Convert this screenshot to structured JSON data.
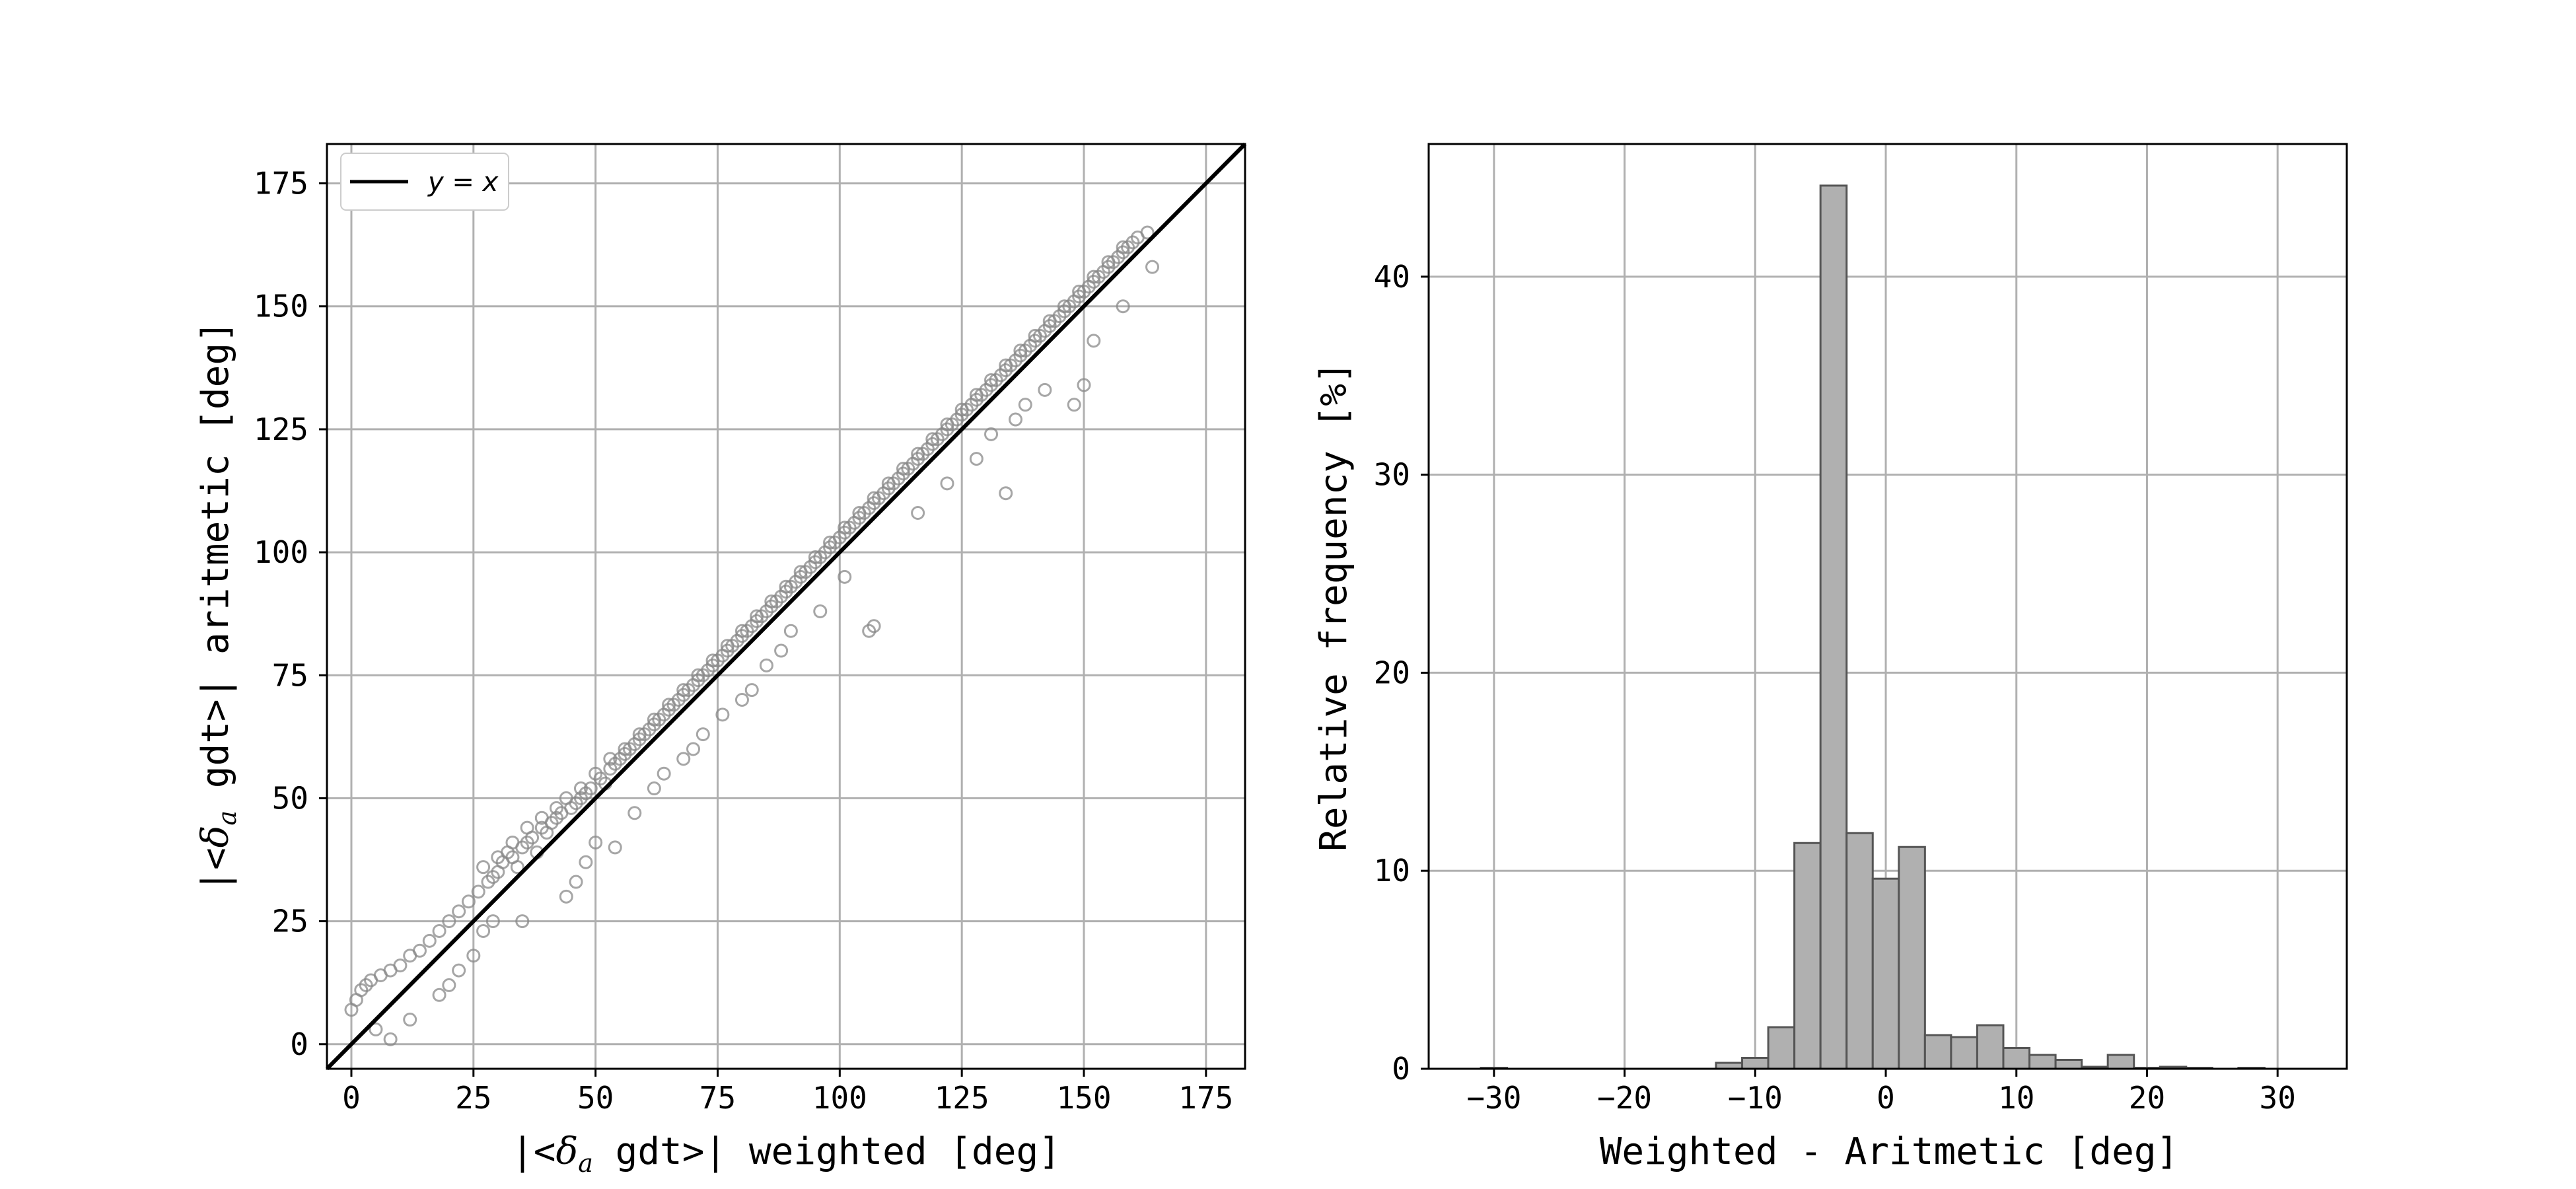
{
  "chart_data": [
    {
      "type": "scatter",
      "xlabel_parts": [
        "|<",
        "δ",
        "a",
        " gdt>| weighted [deg]"
      ],
      "ylabel_parts": [
        "|<",
        "δ",
        "a",
        " gdt>| aritmetic [deg]"
      ],
      "xlim": [
        -5,
        183
      ],
      "ylim": [
        -5,
        183
      ],
      "xticks": [
        0,
        25,
        50,
        75,
        100,
        125,
        150,
        175
      ],
      "yticks": [
        0,
        25,
        50,
        75,
        100,
        125,
        150,
        175
      ],
      "grid": true,
      "legend": {
        "location": "upper-left",
        "entries": [
          "y = x"
        ]
      },
      "reference_line": {
        "name": "y = x",
        "from": [
          -5,
          -5
        ],
        "to": [
          183,
          183
        ],
        "color": "#000000"
      },
      "series": [
        {
          "marker": "hollow-circle",
          "color": "#888888",
          "points": [
            [
              0,
              7
            ],
            [
              1,
              9
            ],
            [
              2,
              11
            ],
            [
              3,
              12
            ],
            [
              4,
              13
            ],
            [
              6,
              14
            ],
            [
              8,
              15
            ],
            [
              10,
              16
            ],
            [
              12,
              18
            ],
            [
              14,
              19
            ],
            [
              16,
              21
            ],
            [
              18,
              23
            ],
            [
              20,
              25
            ],
            [
              22,
              27
            ],
            [
              24,
              29
            ],
            [
              26,
              31
            ],
            [
              28,
              33
            ],
            [
              30,
              35
            ],
            [
              31,
              37
            ],
            [
              33,
              38
            ],
            [
              35,
              40
            ],
            [
              37,
              42
            ],
            [
              39,
              44
            ],
            [
              41,
              45
            ],
            [
              43,
              47
            ],
            [
              45,
              48
            ],
            [
              47,
              50
            ],
            [
              49,
              52
            ],
            [
              51,
              54
            ],
            [
              53,
              56
            ],
            [
              55,
              58
            ],
            [
              57,
              60
            ],
            [
              59,
              62
            ],
            [
              61,
              64
            ],
            [
              63,
              66
            ],
            [
              65,
              68
            ],
            [
              67,
              70
            ],
            [
              69,
              72
            ],
            [
              71,
              74
            ],
            [
              73,
              76
            ],
            [
              75,
              78
            ],
            [
              77,
              80
            ],
            [
              79,
              82
            ],
            [
              81,
              84
            ],
            [
              83,
              86
            ],
            [
              85,
              88
            ],
            [
              87,
              90
            ],
            [
              89,
              92
            ],
            [
              91,
              94
            ],
            [
              93,
              96
            ],
            [
              95,
              98
            ],
            [
              97,
              100
            ],
            [
              99,
              102
            ],
            [
              101,
              104
            ],
            [
              103,
              106
            ],
            [
              105,
              108
            ],
            [
              107,
              110
            ],
            [
              109,
              112
            ],
            [
              111,
              114
            ],
            [
              113,
              116
            ],
            [
              115,
              118
            ],
            [
              117,
              120
            ],
            [
              119,
              122
            ],
            [
              121,
              124
            ],
            [
              123,
              126
            ],
            [
              125,
              128
            ],
            [
              127,
              130
            ],
            [
              129,
              132
            ],
            [
              131,
              134
            ],
            [
              133,
              136
            ],
            [
              135,
              138
            ],
            [
              137,
              140
            ],
            [
              139,
              142
            ],
            [
              141,
              144
            ],
            [
              143,
              146
            ],
            [
              145,
              148
            ],
            [
              147,
              150
            ],
            [
              149,
              152
            ],
            [
              151,
              154
            ],
            [
              153,
              156
            ],
            [
              155,
              158
            ],
            [
              157,
              160
            ],
            [
              159,
              162
            ],
            [
              161,
              164
            ],
            [
              163,
              165
            ],
            [
              27,
              36
            ],
            [
              29,
              34
            ],
            [
              32,
              39
            ],
            [
              34,
              36
            ],
            [
              36,
              41
            ],
            [
              38,
              39
            ],
            [
              40,
              43
            ],
            [
              42,
              46
            ],
            [
              46,
              49
            ],
            [
              48,
              51
            ],
            [
              52,
              53
            ],
            [
              54,
              57
            ],
            [
              56,
              59
            ],
            [
              58,
              61
            ],
            [
              60,
              63
            ],
            [
              62,
              65
            ],
            [
              64,
              67
            ],
            [
              66,
              69
            ],
            [
              68,
              71
            ],
            [
              70,
              73
            ],
            [
              72,
              75
            ],
            [
              74,
              77
            ],
            [
              76,
              79
            ],
            [
              78,
              81
            ],
            [
              80,
              83
            ],
            [
              82,
              85
            ],
            [
              84,
              87
            ],
            [
              86,
              89
            ],
            [
              88,
              91
            ],
            [
              90,
              93
            ],
            [
              92,
              95
            ],
            [
              94,
              97
            ],
            [
              96,
              99
            ],
            [
              98,
              101
            ],
            [
              100,
              103
            ],
            [
              102,
              105
            ],
            [
              104,
              107
            ],
            [
              106,
              109
            ],
            [
              108,
              111
            ],
            [
              110,
              113
            ],
            [
              112,
              115
            ],
            [
              114,
              117
            ],
            [
              116,
              119
            ],
            [
              118,
              121
            ],
            [
              120,
              123
            ],
            [
              122,
              125
            ],
            [
              124,
              127
            ],
            [
              126,
              129
            ],
            [
              128,
              131
            ],
            [
              130,
              133
            ],
            [
              132,
              135
            ],
            [
              134,
              137
            ],
            [
              136,
              139
            ],
            [
              138,
              141
            ],
            [
              140,
              143
            ],
            [
              142,
              145
            ],
            [
              144,
              147
            ],
            [
              146,
              149
            ],
            [
              148,
              151
            ],
            [
              150,
              153
            ],
            [
              152,
              155
            ],
            [
              154,
              157
            ],
            [
              156,
              159
            ],
            [
              158,
              161
            ],
            [
              160,
              163
            ],
            [
              5,
              3
            ],
            [
              8,
              1
            ],
            [
              12,
              5
            ],
            [
              18,
              10
            ],
            [
              20,
              12
            ],
            [
              22,
              15
            ],
            [
              25,
              18
            ],
            [
              27,
              23
            ],
            [
              29,
              25
            ],
            [
              35,
              25
            ],
            [
              44,
              30
            ],
            [
              46,
              33
            ],
            [
              48,
              37
            ],
            [
              50,
              41
            ],
            [
              54,
              40
            ],
            [
              58,
              47
            ],
            [
              62,
              52
            ],
            [
              64,
              55
            ],
            [
              68,
              58
            ],
            [
              70,
              60
            ],
            [
              72,
              63
            ],
            [
              76,
              67
            ],
            [
              80,
              70
            ],
            [
              82,
              72
            ],
            [
              85,
              77
            ],
            [
              88,
              80
            ],
            [
              90,
              84
            ],
            [
              96,
              88
            ],
            [
              101,
              95
            ],
            [
              107,
              85
            ],
            [
              106,
              84
            ],
            [
              116,
              108
            ],
            [
              122,
              114
            ],
            [
              128,
              119
            ],
            [
              131,
              124
            ],
            [
              134,
              112
            ],
            [
              136,
              127
            ],
            [
              138,
              130
            ],
            [
              142,
              133
            ],
            [
              148,
              130
            ],
            [
              150,
              134
            ],
            [
              152,
              143
            ],
            [
              158,
              150
            ],
            [
              164,
              158
            ],
            [
              30,
              38
            ],
            [
              33,
              41
            ],
            [
              36,
              44
            ],
            [
              39,
              46
            ],
            [
              42,
              48
            ],
            [
              44,
              50
            ],
            [
              47,
              52
            ],
            [
              50,
              55
            ],
            [
              53,
              58
            ],
            [
              56,
              60
            ],
            [
              59,
              63
            ],
            [
              62,
              66
            ],
            [
              65,
              69
            ],
            [
              68,
              72
            ],
            [
              71,
              75
            ],
            [
              74,
              78
            ],
            [
              77,
              81
            ],
            [
              80,
              84
            ],
            [
              83,
              87
            ],
            [
              86,
              90
            ],
            [
              89,
              93
            ],
            [
              92,
              96
            ],
            [
              95,
              99
            ],
            [
              98,
              102
            ],
            [
              101,
              105
            ],
            [
              104,
              108
            ],
            [
              107,
              111
            ],
            [
              110,
              114
            ],
            [
              113,
              117
            ],
            [
              116,
              120
            ],
            [
              119,
              123
            ],
            [
              122,
              126
            ],
            [
              125,
              129
            ],
            [
              128,
              132
            ],
            [
              131,
              135
            ],
            [
              134,
              138
            ],
            [
              137,
              141
            ],
            [
              140,
              144
            ],
            [
              143,
              147
            ],
            [
              146,
              150
            ],
            [
              149,
              153
            ],
            [
              152,
              156
            ],
            [
              155,
              159
            ],
            [
              158,
              162
            ]
          ]
        }
      ]
    },
    {
      "type": "bar",
      "subtype": "histogram",
      "xlabel": "Weighted - Aritmetic [deg]",
      "ylabel": "Relative frequency [%]",
      "xlim": [
        -35,
        35.3
      ],
      "ylim": [
        0,
        46.7
      ],
      "xticks": [
        -30,
        -20,
        -10,
        0,
        10,
        20,
        30
      ],
      "yticks": [
        0,
        10,
        20,
        30,
        40
      ],
      "grid": true,
      "bar_color": "#b0b0b0",
      "edge_color": "#555555",
      "bin_width": 2,
      "bins": [
        {
          "x0": -31,
          "value": 0.05
        },
        {
          "x0": -13,
          "value": 0.3
        },
        {
          "x0": -11,
          "value": 0.55
        },
        {
          "x0": -9,
          "value": 2.1
        },
        {
          "x0": -7,
          "value": 11.4
        },
        {
          "x0": -5,
          "value": 44.6
        },
        {
          "x0": -3,
          "value": 11.9
        },
        {
          "x0": -1,
          "value": 9.6
        },
        {
          "x0": 1,
          "value": 11.2
        },
        {
          "x0": 3,
          "value": 1.7
        },
        {
          "x0": 5,
          "value": 1.6
        },
        {
          "x0": 7,
          "value": 2.2
        },
        {
          "x0": 9,
          "value": 1.05
        },
        {
          "x0": 11,
          "value": 0.7
        },
        {
          "x0": 13,
          "value": 0.45
        },
        {
          "x0": 15,
          "value": 0.1
        },
        {
          "x0": 17,
          "value": 0.7
        },
        {
          "x0": 19,
          "value": 0.05
        },
        {
          "x0": 21,
          "value": 0.1
        },
        {
          "x0": 23,
          "value": 0.05
        },
        {
          "x0": 27,
          "value": 0.05
        }
      ]
    }
  ]
}
